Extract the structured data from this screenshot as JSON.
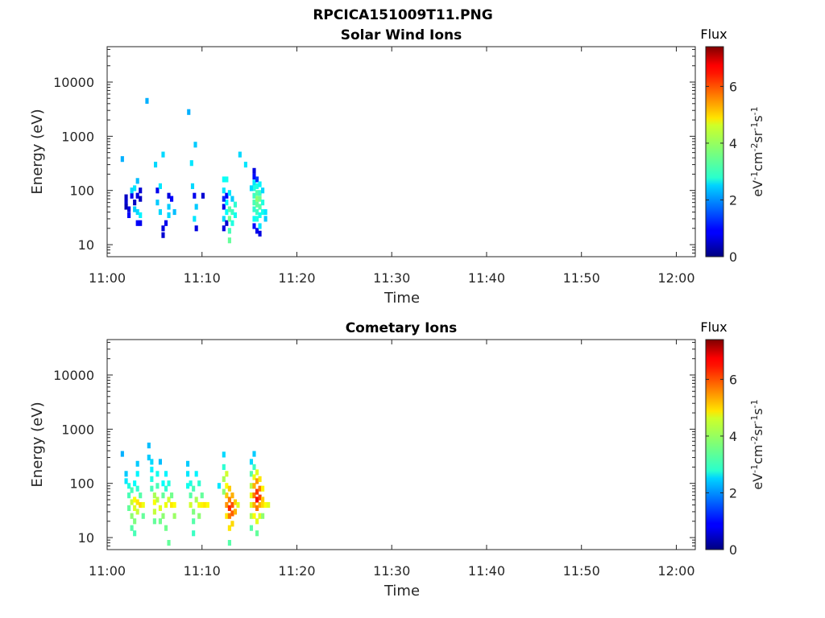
{
  "figure_title": "RPCICA151009T11.PNG",
  "chart_data": [
    {
      "type": "heatmap",
      "title": "Solar Wind Ions",
      "xlabel": "Time",
      "ylabel": "Energy (eV)",
      "x_ticks": [
        "11:00",
        "11:10",
        "11:20",
        "11:30",
        "11:40",
        "11:50",
        "12:00"
      ],
      "y_scale": "log",
      "y_ticks": [
        10,
        100,
        1000,
        10000
      ],
      "ylim": [
        6,
        45000
      ],
      "xlim_minutes": [
        0,
        62
      ],
      "colorbar": {
        "title": "Flux",
        "label_base": "eV",
        "label_parts": [
          "-1",
          "cm",
          "-2",
          "sr",
          "-1",
          "s",
          "-1"
        ],
        "range": [
          0,
          7.4
        ],
        "ticks": [
          0,
          2,
          4,
          6
        ],
        "colormap": "jet",
        "placement": "right"
      },
      "cells": [
        [
          1.6,
          380,
          2.2
        ],
        [
          4.2,
          4500,
          2.2
        ],
        [
          8.6,
          2800,
          2.2
        ],
        [
          9.3,
          700,
          2.4
        ],
        [
          5.9,
          460,
          2.5
        ],
        [
          14.0,
          460,
          2.5
        ],
        [
          5.1,
          300,
          2.5
        ],
        [
          8.9,
          320,
          2.6
        ],
        [
          14.6,
          300,
          2.6
        ],
        [
          2.0,
          75,
          0.5
        ],
        [
          2.0,
          60,
          0.6
        ],
        [
          2.0,
          50,
          0.4
        ],
        [
          2.3,
          45,
          0.7
        ],
        [
          2.3,
          35,
          0.9
        ],
        [
          2.6,
          80,
          0.8
        ],
        [
          2.9,
          60,
          0.5
        ],
        [
          3.2,
          80,
          0.7
        ],
        [
          3.2,
          40,
          2.5
        ],
        [
          3.2,
          25,
          0.9
        ],
        [
          3.5,
          100,
          0.6
        ],
        [
          3.5,
          70,
          0.5
        ],
        [
          3.5,
          35,
          2.7
        ],
        [
          3.5,
          25,
          0.8
        ],
        [
          3.2,
          150,
          2.3
        ],
        [
          2.9,
          110,
          2.6
        ],
        [
          2.6,
          100,
          2.5
        ],
        [
          2.9,
          45,
          2.4
        ],
        [
          5.3,
          100,
          0.8
        ],
        [
          5.3,
          60,
          2.4
        ],
        [
          5.6,
          40,
          2.5
        ],
        [
          5.9,
          20,
          0.7
        ],
        [
          5.9,
          15,
          0.6
        ],
        [
          6.2,
          25,
          0.8
        ],
        [
          6.5,
          80,
          0.7
        ],
        [
          6.5,
          35,
          2.5
        ],
        [
          6.8,
          70,
          0.9
        ],
        [
          7.1,
          40,
          2.3
        ],
        [
          6.5,
          50,
          2.4
        ],
        [
          5.6,
          120,
          2.6
        ],
        [
          9.0,
          120,
          2.5
        ],
        [
          9.2,
          80,
          0.8
        ],
        [
          9.2,
          30,
          2.6
        ],
        [
          9.4,
          20,
          0.7
        ],
        [
          9.4,
          50,
          2.4
        ],
        [
          10.1,
          80,
          0.6
        ],
        [
          12.3,
          160,
          2.8
        ],
        [
          12.6,
          160,
          2.9
        ],
        [
          12.3,
          100,
          2.6
        ],
        [
          12.3,
          50,
          0.8
        ],
        [
          12.3,
          30,
          2.5
        ],
        [
          12.3,
          20,
          0.7
        ],
        [
          12.6,
          80,
          0.9
        ],
        [
          12.6,
          60,
          2.7
        ],
        [
          12.6,
          40,
          2.8
        ],
        [
          12.6,
          25,
          0.6
        ],
        [
          12.9,
          90,
          2.6
        ],
        [
          12.9,
          45,
          3.4
        ],
        [
          12.9,
          30,
          3.6
        ],
        [
          12.9,
          18,
          3.3
        ],
        [
          12.9,
          12,
          3.5
        ],
        [
          13.2,
          70,
          2.4
        ],
        [
          13.2,
          40,
          3.2
        ],
        [
          13.2,
          25,
          3.0
        ],
        [
          13.5,
          55,
          3.1
        ],
        [
          13.5,
          35,
          2.9
        ],
        [
          12.3,
          70,
          1.2
        ],
        [
          15.5,
          230,
          0.7
        ],
        [
          15.5,
          180,
          1.0
        ],
        [
          15.5,
          140,
          2.6
        ],
        [
          15.5,
          110,
          3.0
        ],
        [
          15.5,
          80,
          3.2
        ],
        [
          15.5,
          60,
          3.3
        ],
        [
          15.5,
          45,
          3.1
        ],
        [
          15.5,
          30,
          2.8
        ],
        [
          15.5,
          22,
          1.0
        ],
        [
          15.8,
          160,
          1.3
        ],
        [
          15.8,
          120,
          3.0
        ],
        [
          15.8,
          90,
          3.4
        ],
        [
          15.8,
          70,
          3.8
        ],
        [
          15.8,
          55,
          3.5
        ],
        [
          15.8,
          40,
          3.2
        ],
        [
          15.8,
          30,
          3.0
        ],
        [
          15.8,
          18,
          0.8
        ],
        [
          16.1,
          130,
          2.7
        ],
        [
          16.1,
          90,
          3.2
        ],
        [
          16.1,
          70,
          3.6
        ],
        [
          16.1,
          50,
          3.4
        ],
        [
          16.1,
          35,
          2.9
        ],
        [
          16.1,
          22,
          2.6
        ],
        [
          16.1,
          16,
          0.7
        ],
        [
          16.4,
          100,
          2.5
        ],
        [
          16.4,
          60,
          3.0
        ],
        [
          16.4,
          40,
          2.9
        ],
        [
          16.7,
          40,
          2.6
        ],
        [
          16.7,
          30,
          2.4
        ],
        [
          15.2,
          110,
          2.5
        ]
      ]
    },
    {
      "type": "heatmap",
      "title": "Cometary Ions",
      "xlabel": "Time",
      "ylabel": "Energy (eV)",
      "x_ticks": [
        "11:00",
        "11:10",
        "11:20",
        "11:30",
        "11:40",
        "11:50",
        "12:00"
      ],
      "y_scale": "log",
      "y_ticks": [
        10,
        100,
        1000,
        10000
      ],
      "ylim": [
        6,
        45000
      ],
      "xlim_minutes": [
        0,
        62
      ],
      "colorbar": {
        "title": "Flux",
        "label_base": "eV",
        "label_parts": [
          "-1",
          "cm",
          "-2",
          "sr",
          "-1",
          "s",
          "-1"
        ],
        "range": [
          0,
          7.4
        ],
        "ticks": [
          0,
          2,
          4,
          6
        ],
        "colormap": "jet",
        "placement": "right"
      },
      "cells": [
        [
          1.6,
          350,
          2.2
        ],
        [
          2.0,
          150,
          2.4
        ],
        [
          2.0,
          110,
          2.6
        ],
        [
          2.3,
          90,
          3.0
        ],
        [
          2.3,
          60,
          3.3
        ],
        [
          2.3,
          35,
          3.5
        ],
        [
          2.6,
          75,
          3.3
        ],
        [
          2.6,
          45,
          4.2
        ],
        [
          2.6,
          25,
          3.8
        ],
        [
          2.6,
          15,
          3.4
        ],
        [
          2.9,
          100,
          2.8
        ],
        [
          2.9,
          50,
          4.6
        ],
        [
          2.9,
          35,
          4.4
        ],
        [
          2.9,
          20,
          3.7
        ],
        [
          2.9,
          12,
          3.3
        ],
        [
          3.2,
          150,
          2.7
        ],
        [
          3.2,
          80,
          3.1
        ],
        [
          3.2,
          45,
          4.8
        ],
        [
          3.2,
          30,
          4.2
        ],
        [
          3.5,
          60,
          3.4
        ],
        [
          3.5,
          40,
          4.9
        ],
        [
          3.8,
          40,
          4.5
        ],
        [
          3.8,
          25,
          3.5
        ],
        [
          3.2,
          230,
          2.4
        ],
        [
          4.4,
          500,
          2.3
        ],
        [
          4.4,
          300,
          2.4
        ],
        [
          4.7,
          250,
          2.5
        ],
        [
          4.7,
          180,
          2.7
        ],
        [
          4.7,
          120,
          3.0
        ],
        [
          4.7,
          80,
          3.3
        ],
        [
          5.0,
          60,
          4.0
        ],
        [
          5.0,
          45,
          4.6
        ],
        [
          5.0,
          30,
          4.2
        ],
        [
          5.0,
          20,
          3.5
        ],
        [
          5.3,
          150,
          2.9
        ],
        [
          5.3,
          90,
          3.3
        ],
        [
          5.3,
          50,
          4.1
        ],
        [
          5.6,
          35,
          4.4
        ],
        [
          5.6,
          20,
          3.6
        ],
        [
          5.9,
          100,
          2.8
        ],
        [
          5.9,
          60,
          3.5
        ],
        [
          5.9,
          25,
          3.8
        ],
        [
          6.2,
          150,
          2.7
        ],
        [
          6.2,
          80,
          3.1
        ],
        [
          6.2,
          40,
          4.5
        ],
        [
          6.2,
          15,
          3.6
        ],
        [
          6.5,
          100,
          3.0
        ],
        [
          6.5,
          50,
          4.3
        ],
        [
          6.5,
          8,
          3.5
        ],
        [
          6.8,
          60,
          3.6
        ],
        [
          6.8,
          40,
          4.8
        ],
        [
          7.1,
          40,
          4.6
        ],
        [
          7.1,
          25,
          3.9
        ],
        [
          5.6,
          250,
          2.3
        ],
        [
          8.5,
          230,
          2.4
        ],
        [
          8.5,
          150,
          2.6
        ],
        [
          8.8,
          100,
          3.0
        ],
        [
          8.8,
          60,
          3.4
        ],
        [
          8.8,
          40,
          4.3
        ],
        [
          9.1,
          80,
          3.3
        ],
        [
          9.1,
          30,
          3.7
        ],
        [
          9.1,
          20,
          3.4
        ],
        [
          9.1,
          12,
          3.2
        ],
        [
          9.4,
          150,
          2.7
        ],
        [
          9.4,
          50,
          4.0
        ],
        [
          9.7,
          100,
          3.1
        ],
        [
          9.7,
          40,
          4.5
        ],
        [
          9.7,
          25,
          3.8
        ],
        [
          10.0,
          60,
          3.5
        ],
        [
          10.0,
          40,
          4.7
        ],
        [
          10.3,
          40,
          4.8
        ],
        [
          10.6,
          40,
          4.6
        ],
        [
          8.5,
          90,
          2.9
        ],
        [
          11.8,
          90,
          2.6
        ],
        [
          12.3,
          340,
          2.5
        ],
        [
          12.3,
          200,
          3.1
        ],
        [
          12.3,
          120,
          4.0
        ],
        [
          12.6,
          150,
          4.3
        ],
        [
          12.6,
          90,
          4.6
        ],
        [
          12.6,
          60,
          5.0
        ],
        [
          12.6,
          40,
          5.4
        ],
        [
          12.6,
          25,
          4.8
        ],
        [
          12.9,
          80,
          5.0
        ],
        [
          12.9,
          50,
          5.6
        ],
        [
          12.9,
          35,
          6.2
        ],
        [
          12.9,
          25,
          5.6
        ],
        [
          12.9,
          15,
          4.8
        ],
        [
          12.9,
          8,
          3.4
        ],
        [
          13.2,
          60,
          5.2
        ],
        [
          13.2,
          40,
          5.9
        ],
        [
          13.2,
          28,
          5.8
        ],
        [
          13.2,
          18,
          4.9
        ],
        [
          13.5,
          45,
          5.0
        ],
        [
          13.5,
          30,
          5.2
        ],
        [
          13.8,
          40,
          4.4
        ],
        [
          12.3,
          70,
          3.8
        ],
        [
          15.2,
          250,
          2.5
        ],
        [
          15.2,
          150,
          3.4
        ],
        [
          15.2,
          90,
          4.1
        ],
        [
          15.2,
          60,
          4.5
        ],
        [
          15.2,
          40,
          4.4
        ],
        [
          15.2,
          25,
          4.0
        ],
        [
          15.2,
          15,
          3.4
        ],
        [
          15.5,
          350,
          2.4
        ],
        [
          15.5,
          200,
          3.2
        ],
        [
          15.5,
          130,
          4.5
        ],
        [
          15.5,
          90,
          5.2
        ],
        [
          15.5,
          60,
          5.6
        ],
        [
          15.5,
          40,
          5.2
        ],
        [
          15.5,
          25,
          4.6
        ],
        [
          15.8,
          160,
          4.4
        ],
        [
          15.8,
          110,
          5.4
        ],
        [
          15.8,
          70,
          6.1
        ],
        [
          15.8,
          50,
          6.5
        ],
        [
          15.8,
          35,
          5.6
        ],
        [
          15.8,
          20,
          4.4
        ],
        [
          15.8,
          12,
          3.5
        ],
        [
          16.1,
          120,
          4.8
        ],
        [
          16.1,
          80,
          5.6
        ],
        [
          16.1,
          55,
          6.0
        ],
        [
          16.1,
          40,
          5.2
        ],
        [
          16.1,
          25,
          4.4
        ],
        [
          16.4,
          80,
          4.7
        ],
        [
          16.4,
          50,
          5.0
        ],
        [
          16.4,
          40,
          4.9
        ],
        [
          16.7,
          40,
          4.6
        ],
        [
          17.0,
          40,
          4.4
        ],
        [
          16.4,
          25,
          3.8
        ]
      ]
    }
  ]
}
